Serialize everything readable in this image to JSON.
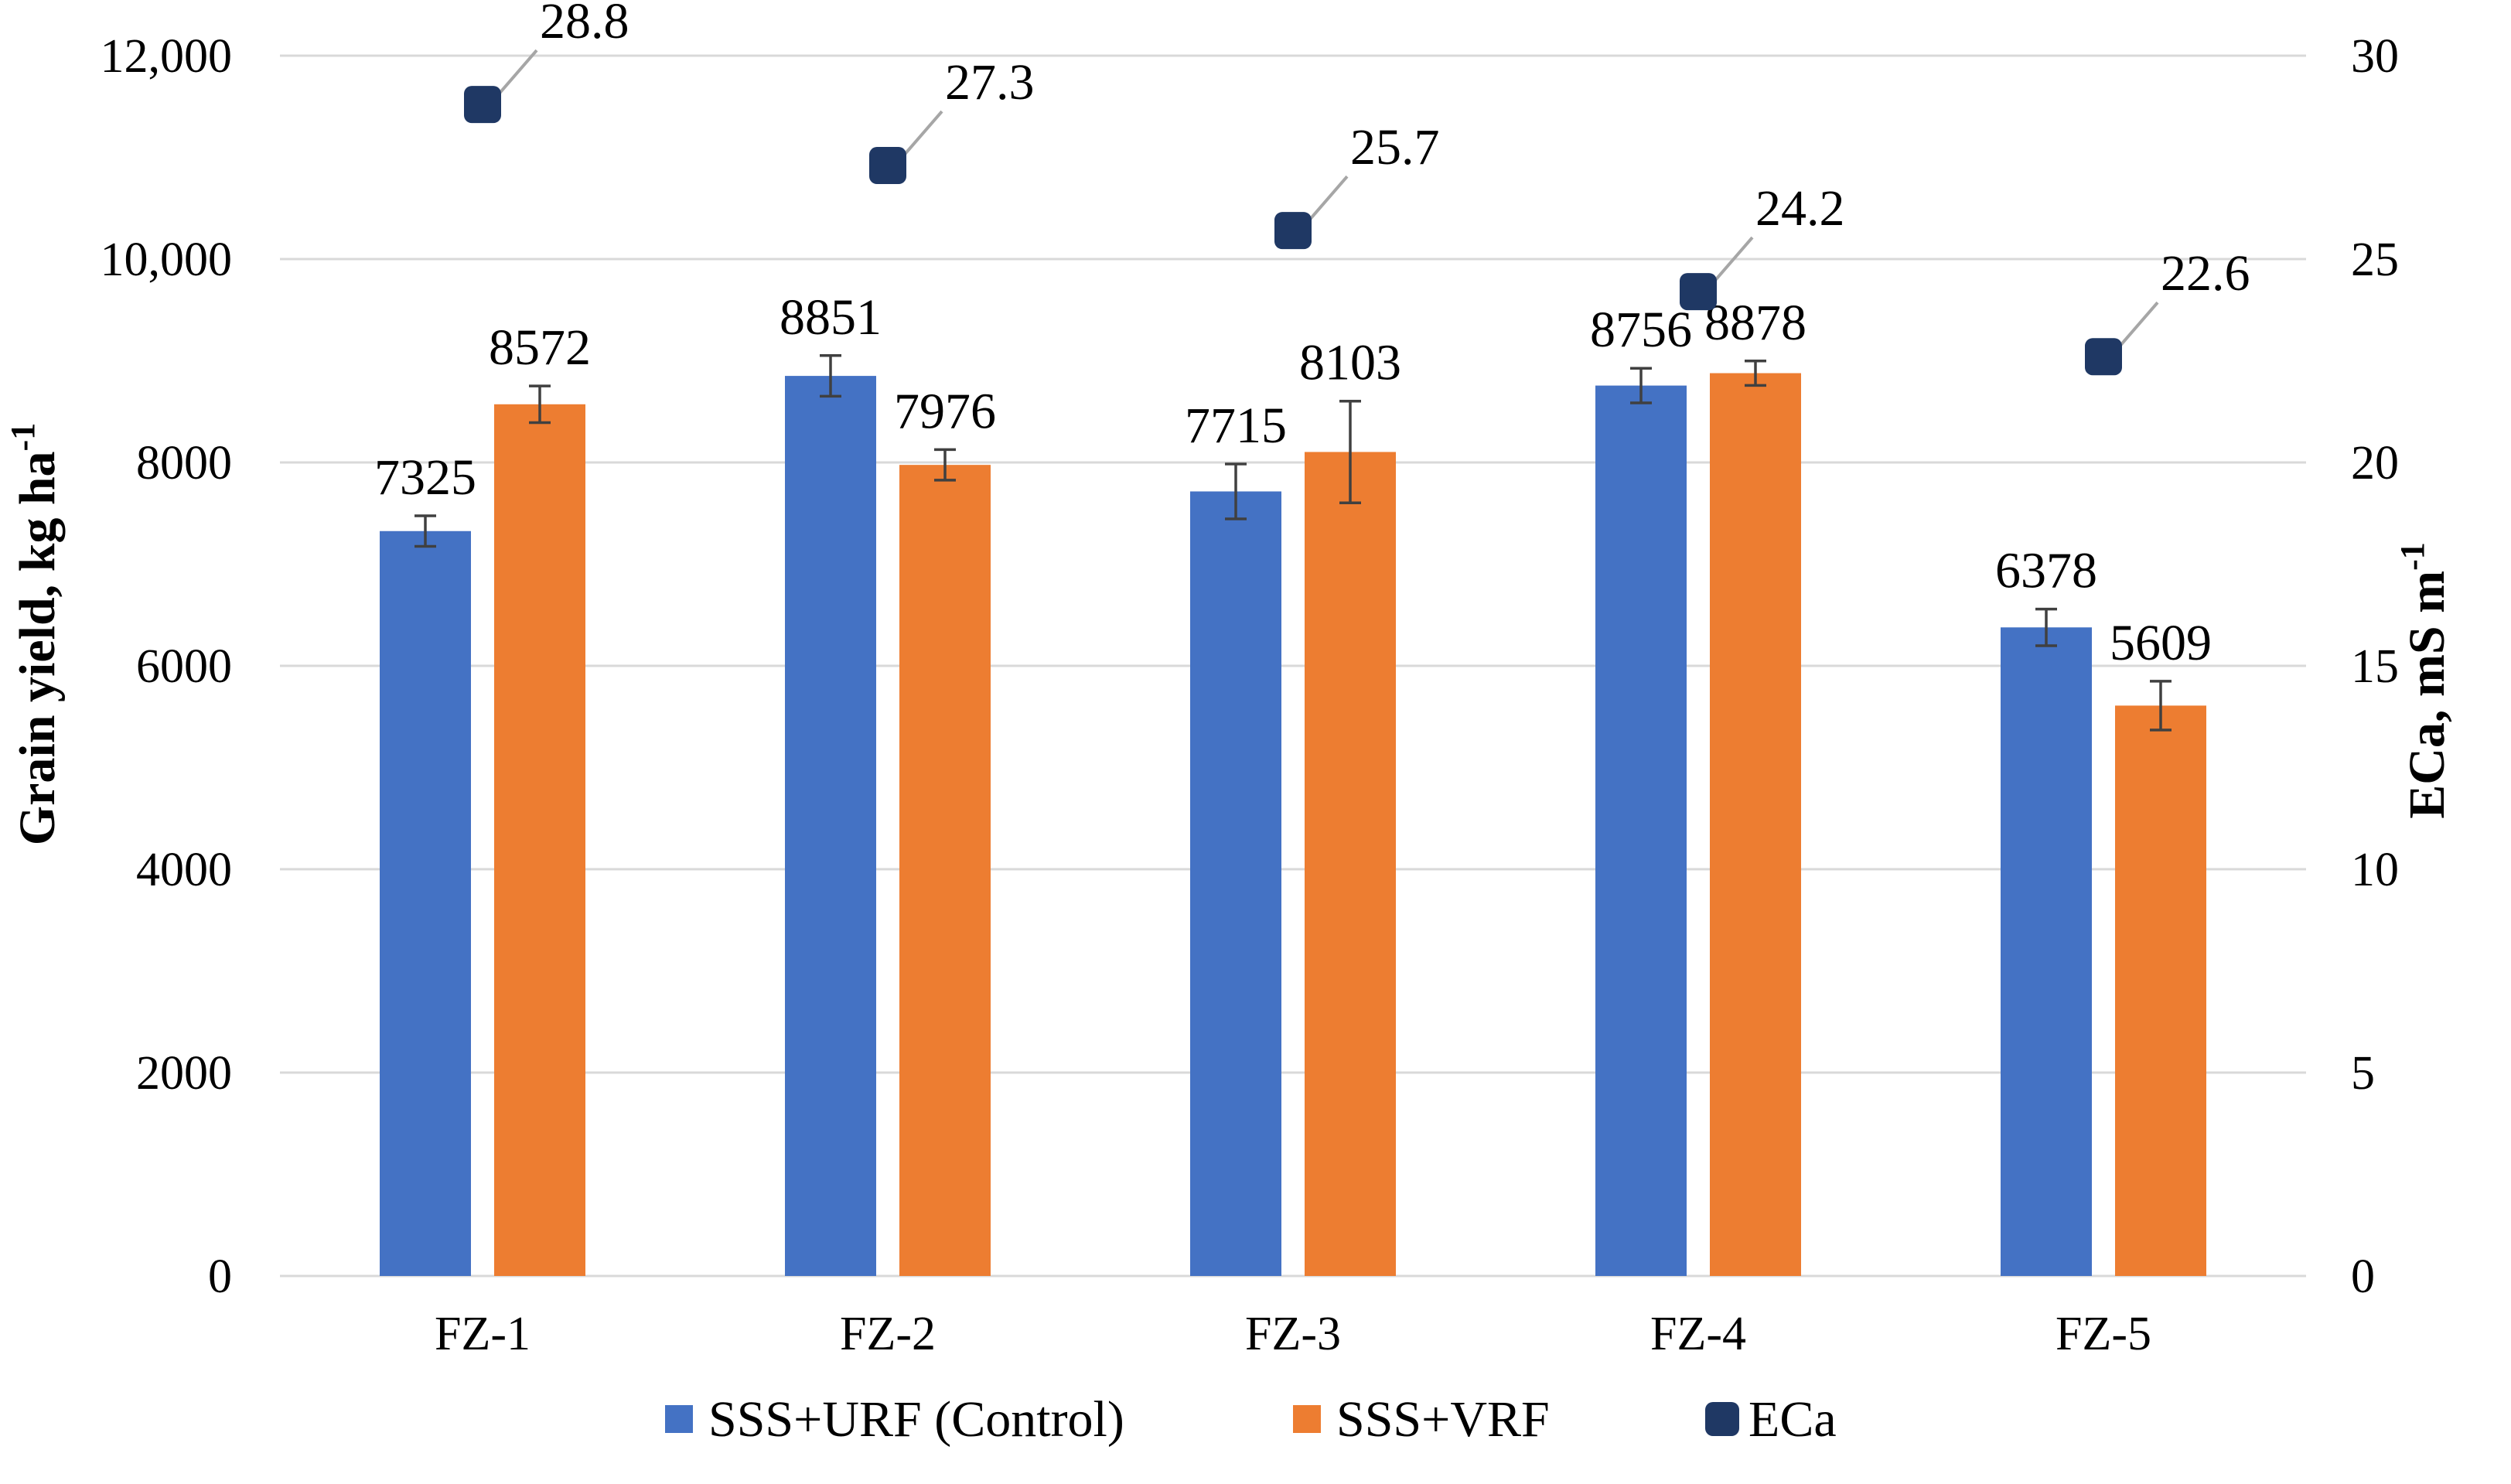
{
  "chart_data": {
    "type": "bar",
    "categories": [
      "FZ-1",
      "FZ-2",
      "FZ-3",
      "FZ-4",
      "FZ-5"
    ],
    "series": [
      {
        "name": "SSS+URF (Control)",
        "color": "#4472C4",
        "axis": "left",
        "values": [
          7325,
          8851,
          7715,
          8756,
          6378
        ],
        "labels": [
          "7325",
          "8851",
          "7715",
          "8756",
          "6378"
        ],
        "errors": [
          150,
          200,
          270,
          170,
          180
        ]
      },
      {
        "name": "SSS+VRF",
        "color": "#ED7D31",
        "axis": "left",
        "values": [
          8572,
          7976,
          8103,
          8878,
          5609
        ],
        "labels": [
          "8572",
          "7976",
          "8103",
          "8878",
          "5609"
        ],
        "errors": [
          180,
          150,
          500,
          120,
          240
        ]
      },
      {
        "name": "ECa",
        "type": "scatter",
        "color": "#1F3864",
        "axis": "right",
        "values": [
          28.8,
          27.3,
          25.7,
          24.2,
          22.6
        ],
        "labels": [
          "28.8",
          "27.3",
          "25.7",
          "24.2",
          "22.6"
        ]
      }
    ],
    "left_axis": {
      "min": 0,
      "max": 12000,
      "step": 2000,
      "tick_labels": [
        "0",
        "2000",
        "4000",
        "6000",
        "8000",
        "10,000",
        "12,000"
      ],
      "title": "Grain yield, kg ha",
      "title_sup": "-1"
    },
    "right_axis": {
      "min": 0,
      "max": 30,
      "step": 5,
      "tick_labels": [
        "0",
        "5",
        "10",
        "15",
        "20",
        "25",
        "30"
      ],
      "title": "ECa, mS m",
      "title_sup": "-1"
    },
    "grid": true,
    "legend_position": "bottom",
    "colors": {
      "grid": "#D9D9D9",
      "error_bar": "#404040",
      "leader": "#A6A6A6"
    }
  }
}
